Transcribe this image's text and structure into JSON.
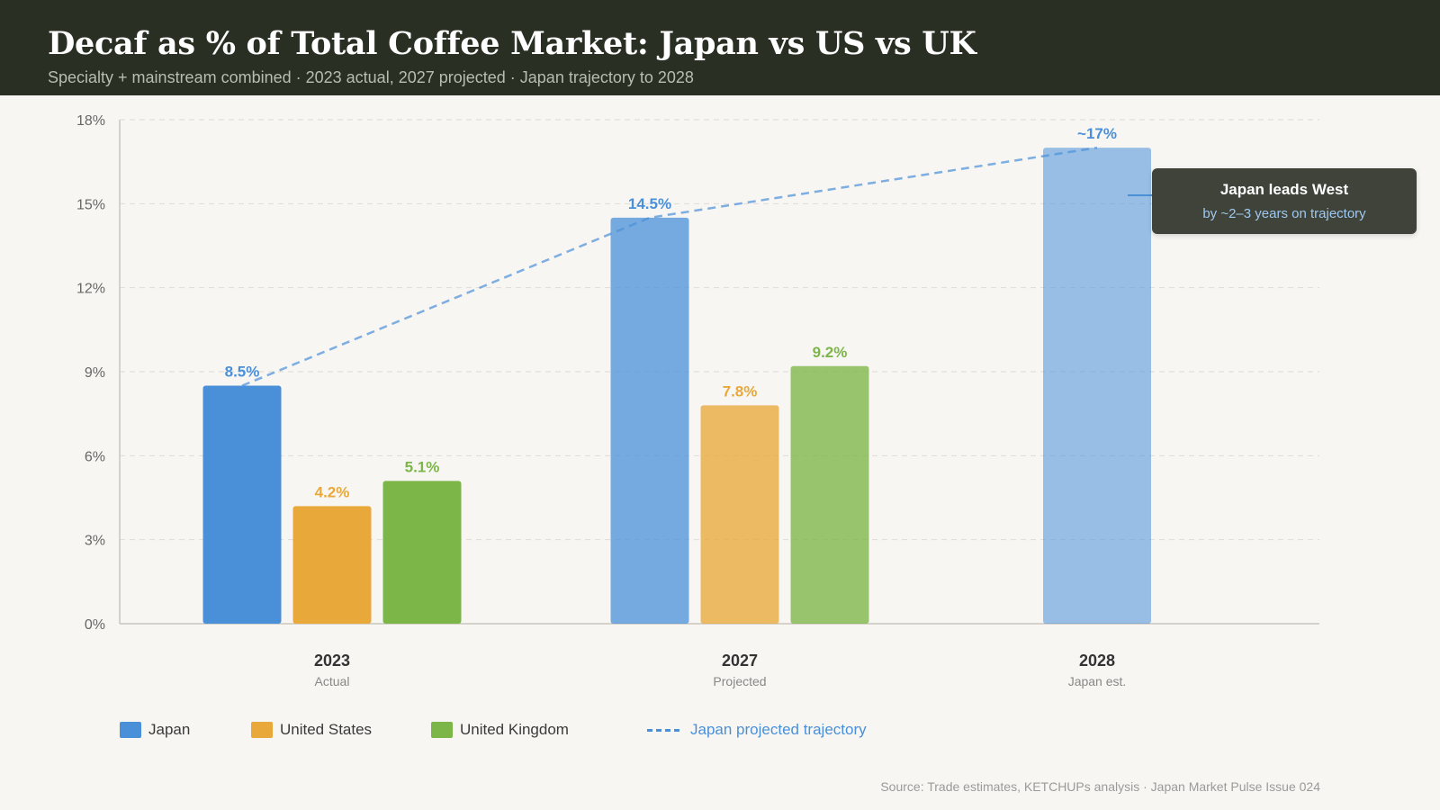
{
  "header": {
    "title": "Decaf as % of Total Coffee Market: Japan vs US vs UK",
    "subtitle": "Specialty + mainstream combined · 2023 actual, 2027 projected · Japan trajectory to 2028"
  },
  "colors": {
    "japan": "#4a90d9",
    "united_states": "#e8a93a",
    "united_kingdom": "#7cb648",
    "trajectory": "#4a90d9",
    "header_bg": "#293023",
    "callout_bg": "#3f433a"
  },
  "callout": {
    "title": "Japan leads West",
    "subtitle": "by ~2–3 years on trajectory"
  },
  "legend": {
    "japan": "Japan",
    "united_states": "United States",
    "united_kingdom": "United Kingdom",
    "trajectory": "Japan projected trajectory"
  },
  "source": "Source: Trade estimates, KETCHUPs analysis · Japan Market Pulse Issue 024",
  "chart_data": {
    "type": "bar",
    "title": "Decaf as % of Total Coffee Market: Japan vs US vs UK",
    "ylim": [
      0,
      18
    ],
    "yticks": [
      0,
      3,
      6,
      9,
      12,
      15,
      18
    ],
    "ytick_labels": [
      "0%",
      "3%",
      "6%",
      "9%",
      "12%",
      "15%",
      "18%"
    ],
    "grid": true,
    "legend_position": "bottom-left",
    "groups": [
      {
        "label": "2023",
        "sublabel": "Actual",
        "bars": [
          {
            "series": "Japan",
            "value": 8.5,
            "label": "8.5%"
          },
          {
            "series": "United States",
            "value": 4.2,
            "label": "4.2%"
          },
          {
            "series": "United Kingdom",
            "value": 5.1,
            "label": "5.1%"
          }
        ]
      },
      {
        "label": "2027",
        "sublabel": "Projected",
        "bars": [
          {
            "series": "Japan",
            "value": 14.5,
            "label": "14.5%"
          },
          {
            "series": "United States",
            "value": 7.8,
            "label": "7.8%"
          },
          {
            "series": "United Kingdom",
            "value": 9.2,
            "label": "9.2%"
          }
        ]
      },
      {
        "label": "2028",
        "sublabel": "Japan est.",
        "bars": [
          {
            "series": "Japan",
            "value": 17,
            "label": "~17%"
          }
        ]
      }
    ],
    "series": [
      {
        "name": "Japan",
        "values": [
          8.5,
          14.5,
          17
        ]
      },
      {
        "name": "United States",
        "values": [
          4.2,
          7.8,
          null
        ]
      },
      {
        "name": "United Kingdom",
        "values": [
          5.1,
          9.2,
          null
        ]
      }
    ],
    "trajectory": {
      "name": "Japan projected trajectory",
      "x": [
        "2023",
        "2027",
        "2028"
      ],
      "values": [
        8.5,
        14.5,
        17
      ],
      "style": "dashed"
    }
  }
}
